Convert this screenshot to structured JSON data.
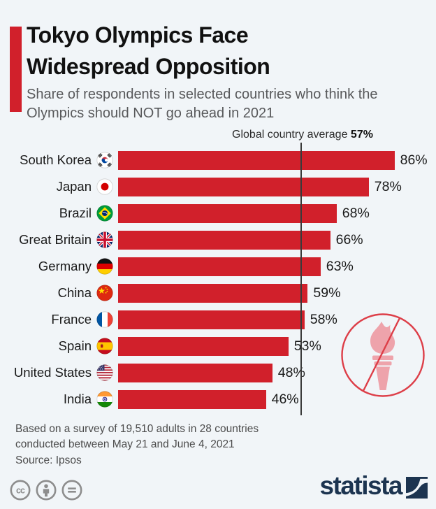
{
  "header": {
    "title": "Tokyo Olympics Face Widespread Opposition",
    "subtitle": "Share of respondents in selected countries who think the Olympics should NOT go ahead in 2021",
    "accent_color": "#d1202b"
  },
  "chart_data": {
    "type": "bar",
    "orientation": "horizontal",
    "title": "Tokyo Olympics Face Widespread Opposition",
    "categories": [
      "South Korea",
      "Japan",
      "Brazil",
      "Great Britain",
      "Germany",
      "China",
      "France",
      "Spain",
      "United States",
      "India"
    ],
    "values": [
      86,
      78,
      68,
      66,
      63,
      59,
      58,
      53,
      48,
      46
    ],
    "value_labels": [
      "86%",
      "78%",
      "68%",
      "66%",
      "63%",
      "59%",
      "58%",
      "53%",
      "48%",
      "46%"
    ],
    "flags": [
      "south-korea-flag-icon",
      "japan-flag-icon",
      "brazil-flag-icon",
      "great-britain-flag-icon",
      "germany-flag-icon",
      "china-flag-icon",
      "france-flag-icon",
      "spain-flag-icon",
      "united-states-flag-icon",
      "india-flag-icon"
    ],
    "average": {
      "label": "Global country average",
      "value": 57,
      "display": "57%"
    },
    "xlim": [
      0,
      100
    ],
    "bar_color": "#d1202b",
    "grid": false,
    "legend": "none",
    "annotation_icon": "crossed-out-olympic-torch"
  },
  "footer": {
    "note_line1": "Based on a survey of 19,510 adults in 28 countries",
    "note_line2": "conducted between May 21 and June 4, 2021",
    "source": "Source: Ipsos"
  },
  "branding": {
    "logo_text": "statista",
    "logo_color": "#1c3450",
    "license_icons": [
      "cc-icon",
      "attribution-icon",
      "no-derivatives-icon"
    ]
  },
  "colors": {
    "background": "#f1f5f8",
    "bar_red": "#d1202b",
    "average_line": "#3a3a3a",
    "torch_pink": "#eea3ab",
    "torch_circle_red": "#dd3e48",
    "license_gray": "#8d8d8d"
  }
}
